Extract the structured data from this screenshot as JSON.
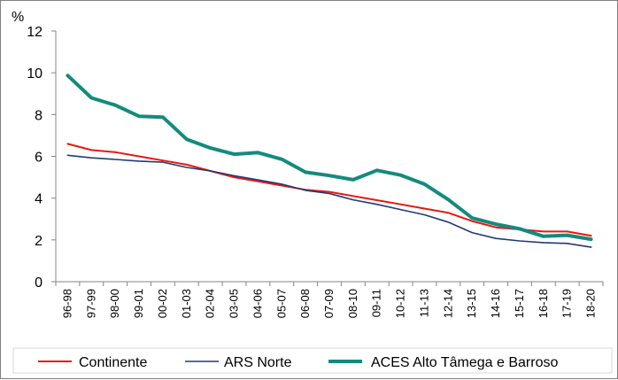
{
  "chart_data": {
    "type": "line",
    "title": "",
    "xlabel": "",
    "ylabel": "%",
    "ylim": [
      0,
      12
    ],
    "yticks": [
      0,
      2,
      4,
      6,
      8,
      10,
      12
    ],
    "grid": false,
    "legend_position": "bottom",
    "categories": [
      "96-98",
      "97-99",
      "98-00",
      "99-01",
      "00-02",
      "01-03",
      "02-04",
      "03-05",
      "04-06",
      "05-07",
      "06-08",
      "07-09",
      "08-10",
      "09-11",
      "10-12",
      "11-13",
      "12-14",
      "13-15",
      "14-16",
      "15-17",
      "16-18",
      "17-19",
      "18-20"
    ],
    "series": [
      {
        "name": "Continente",
        "color": "#e8170f",
        "values": [
          6.6,
          6.3,
          6.2,
          6.0,
          5.8,
          5.6,
          5.3,
          5.0,
          4.8,
          4.6,
          4.4,
          4.3,
          4.1,
          3.9,
          3.7,
          3.5,
          3.3,
          2.9,
          2.6,
          2.5,
          2.4,
          2.4,
          2.2
        ]
      },
      {
        "name": "ARS Norte",
        "color": "#1f3a78",
        "values": [
          6.05,
          5.93,
          5.85,
          5.77,
          5.72,
          5.47,
          5.3,
          5.07,
          4.87,
          4.67,
          4.37,
          4.22,
          3.92,
          3.7,
          3.45,
          3.2,
          2.85,
          2.35,
          2.07,
          1.95,
          1.87,
          1.83,
          1.65
        ]
      },
      {
        "name": "ACES Alto Tâmega e Barroso",
        "color": "#138b7d",
        "values": [
          9.87,
          8.8,
          8.45,
          7.92,
          7.88,
          6.82,
          6.4,
          6.1,
          6.18,
          5.86,
          5.24,
          5.08,
          4.88,
          5.33,
          5.1,
          4.67,
          3.93,
          3.05,
          2.75,
          2.53,
          2.17,
          2.22,
          2.03
        ]
      }
    ]
  }
}
